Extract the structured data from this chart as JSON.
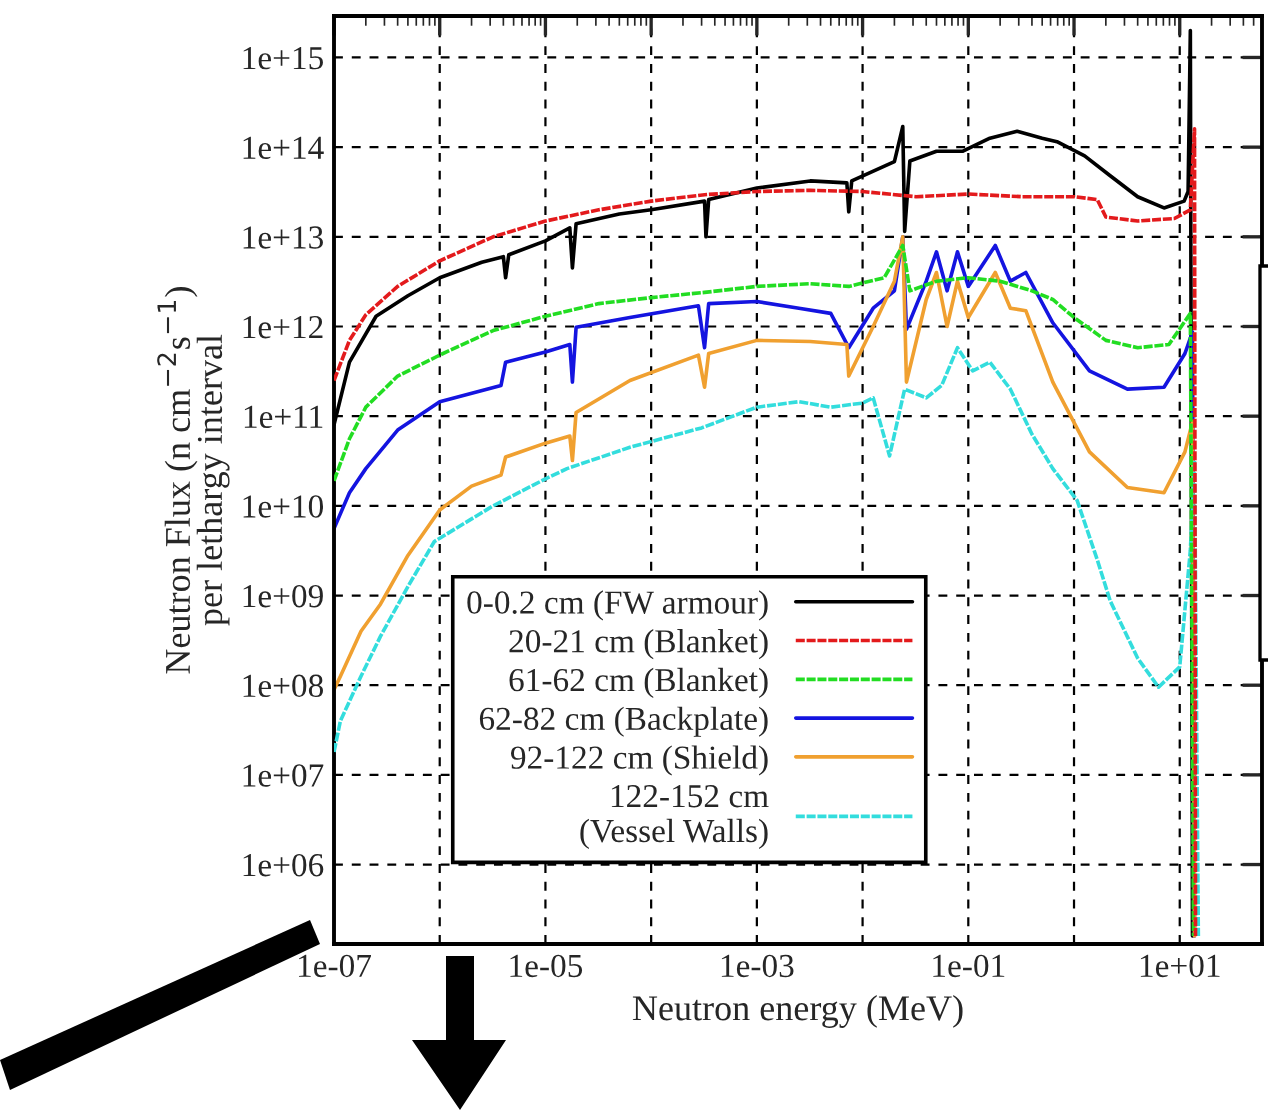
{
  "chart_data": {
    "type": "line",
    "xlabel": "Neutron energy (MeV)",
    "ylabel": "Neutron Flux (n cm$^{−2}$s$^{−1}$)\nper lethargy interval",
    "log": "xy",
    "grid": true,
    "legend": "bottom",
    "marker": "none",
    "xlim": [
      1e-07,
      60
    ],
    "ylim": [
      130000.0,
      2900000000000000.0
    ],
    "xticks": [
      {
        "value": 1e-07,
        "label": "1e-07"
      },
      {
        "value": 1e-06,
        "label": null
      },
      {
        "value": 1e-05,
        "label": "1e-05"
      },
      {
        "value": 0.0001,
        "label": null
      },
      {
        "value": 0.001,
        "label": "1e-03"
      },
      {
        "value": 0.01,
        "label": null
      },
      {
        "value": 0.1,
        "label": "1e-01"
      },
      {
        "value": 1,
        "label": null
      },
      {
        "value": 10,
        "label": "1e+01"
      }
    ],
    "yticks": [
      {
        "value": 1000000.0,
        "label": "1e+06"
      },
      {
        "value": 10000000.0,
        "label": "1e+07"
      },
      {
        "value": 100000000.0,
        "label": "1e+08"
      },
      {
        "value": 1000000000.0,
        "label": "1e+09"
      },
      {
        "value": 10000000000.0,
        "label": "1e+10"
      },
      {
        "value": 100000000000.0,
        "label": "1e+11"
      },
      {
        "value": 1000000000000.0,
        "label": "1e+12"
      },
      {
        "value": 10000000000000.0,
        "label": "1e+13"
      },
      {
        "value": 100000000000000.0,
        "label": "1e+14"
      },
      {
        "value": 1000000000000000.0,
        "label": "1e+15"
      }
    ],
    "series": [
      {
        "name": "0-0.2 cm (FW armour)",
        "color": "#000000",
        "line_style": "solid",
        "x": [
          1e-07,
          1.4e-07,
          2.5e-07,
          5e-07,
          1e-06,
          2.5e-06,
          4e-06,
          4.2e-06,
          4.5e-06,
          1e-05,
          1.7e-05,
          1.8e-05,
          1.95e-05,
          5e-05,
          0.0001,
          0.00032,
          0.00033,
          0.00035,
          0.001,
          0.0032,
          0.0071,
          0.0074,
          0.0079,
          0.02,
          0.024,
          0.025,
          0.028,
          0.05,
          0.089,
          0.16,
          0.29,
          0.5,
          0.69,
          1.26,
          2.2,
          4,
          7.1,
          11,
          12,
          12.6,
          13.2
        ],
        "values": [
          80000000000.0,
          400000000000.0,
          1300000000000.0,
          2200000000000.0,
          3500000000000.0,
          5200000000000.0,
          6000000000000.0,
          3500000000000.0,
          6300000000000.0,
          9000000000000.0,
          12600000000000.0,
          4500000000000.0,
          14000000000000.0,
          18000000000000.0,
          20000000000000.0,
          25000000000000.0,
          10000000000000.0,
          26000000000000.0,
          35000000000000.0,
          42000000000000.0,
          40000000000000.0,
          19000000000000.0,
          42000000000000.0,
          69000000000000.0,
          170000000000000.0,
          11500000000000.0,
          70000000000000.0,
          90000000000000.0,
          90000000000000.0,
          126000000000000.0,
          150000000000000.0,
          126000000000000.0,
          115000000000000.0,
          80000000000000.0,
          48000000000000.0,
          28000000000000.0,
          21000000000000.0,
          25000000000000.0,
          32000000000000.0,
          2000000000000000.0,
          160000.0
        ]
      },
      {
        "name": "20-21 cm (Blanket)",
        "color": "#e31a1c",
        "line_style": "dashed",
        "x": [
          1e-07,
          1.4e-07,
          2e-07,
          4e-07,
          1e-06,
          3.2e-06,
          1e-05,
          3.2e-05,
          0.0001,
          0.00032,
          0.001,
          0.0032,
          0.01,
          0.032,
          0.1,
          0.32,
          1,
          1.66,
          2,
          4,
          8.9,
          12.6,
          13.8,
          14.1
        ],
        "values": [
          250000000000.0,
          700000000000.0,
          1350000000000.0,
          2800000000000.0,
          5400000000000.0,
          10000000000000.0,
          15000000000000.0,
          20000000000000.0,
          25000000000000.0,
          29500000000000.0,
          32000000000000.0,
          33000000000000.0,
          32000000000000.0,
          28000000000000.0,
          30000000000000.0,
          28000000000000.0,
          28000000000000.0,
          26000000000000.0,
          16600000000000.0,
          15000000000000.0,
          16000000000000.0,
          20000000000000.0,
          160000000000000.0,
          160000.0
        ]
      },
      {
        "name": "61-62 cm (Blanket)",
        "color": "#22dd22",
        "line_style": "dashed",
        "x": [
          1e-07,
          1.4e-07,
          2e-07,
          4e-07,
          1e-06,
          3.2e-06,
          1e-05,
          3.2e-05,
          0.0001,
          0.00032,
          0.001,
          0.0032,
          0.0074,
          0.016,
          0.024,
          0.028,
          0.05,
          0.1,
          0.2,
          0.4,
          0.63,
          1,
          2,
          4,
          7.9,
          12.6,
          13.5
        ],
        "values": [
          19000000000.0,
          56000000000.0,
          126000000000.0,
          280000000000.0,
          480000000000.0,
          900000000000.0,
          1300000000000.0,
          1800000000000.0,
          2100000000000.0,
          2400000000000.0,
          2800000000000.0,
          3000000000000.0,
          2800000000000.0,
          3500000000000.0,
          8000000000000.0,
          2500000000000.0,
          3200000000000.0,
          3500000000000.0,
          3200000000000.0,
          2500000000000.0,
          2000000000000.0,
          1260000000000.0,
          700000000000.0,
          580000000000.0,
          630000000000.0,
          1400000000000.0,
          160000.0
        ]
      },
      {
        "name": "62-82 cm (Backplate)",
        "color": "#1414e0",
        "line_style": "solid",
        "x": [
          1e-07,
          1.4e-07,
          2e-07,
          4e-07,
          1e-06,
          3.8e-06,
          4.2e-06,
          1e-05,
          1.7e-05,
          1.8e-05,
          1.95e-05,
          6.3e-05,
          0.00028,
          0.00032,
          0.00035,
          0.001,
          0.0025,
          0.005,
          0.0074,
          0.0126,
          0.02,
          0.024,
          0.026,
          0.04,
          0.05,
          0.063,
          0.079,
          0.1,
          0.18,
          0.25,
          0.35,
          0.63,
          1.4,
          3.2,
          7.1,
          11.2,
          13.2,
          13.8
        ],
        "values": [
          5600000000.0,
          14000000000.0,
          26000000000.0,
          70000000000.0,
          145000000000.0,
          220000000000.0,
          400000000000.0,
          520000000000.0,
          630000000000.0,
          240000000000.0,
          980000000000.0,
          1260000000000.0,
          1700000000000.0,
          580000000000.0,
          1800000000000.0,
          1900000000000.0,
          1600000000000.0,
          1400000000000.0,
          580000000000.0,
          1600000000000.0,
          2500000000000.0,
          10000000000000.0,
          930000000000.0,
          3200000000000.0,
          6800000000000.0,
          2500000000000.0,
          6800000000000.0,
          2800000000000.0,
          8000000000000.0,
          3200000000000.0,
          4000000000000.0,
          1100000000000.0,
          320000000000.0,
          200000000000.0,
          210000000000.0,
          500000000000.0,
          870000000000.0,
          160000.0
        ]
      },
      {
        "name": "92-122 cm (Shield)",
        "color": "#f0a030",
        "line_style": "solid",
        "x": [
          1e-07,
          1.15e-07,
          1.8e-07,
          2.75e-07,
          5e-07,
          1e-06,
          2e-06,
          3.8e-06,
          4.2e-06,
          1e-05,
          1.7e-05,
          1.8e-05,
          1.95e-05,
          6.3e-05,
          0.00028,
          0.00032,
          0.00035,
          0.001,
          0.0032,
          0.0071,
          0.0074,
          0.0126,
          0.02,
          0.024,
          0.026,
          0.04,
          0.05,
          0.063,
          0.079,
          0.1,
          0.18,
          0.25,
          0.35,
          0.63,
          1.4,
          3.2,
          7.1,
          11.2,
          13.2,
          13.8
        ],
        "values": [
          89000000.0,
          126000000.0,
          400000000.0,
          800000000.0,
          2800000000.0,
          9000000000.0,
          16600000000.0,
          22000000000.0,
          35000000000.0,
          50000000000.0,
          60000000000.0,
          32000000000.0,
          110000000000.0,
          250000000000.0,
          480000000000.0,
          210000000000.0,
          500000000000.0,
          700000000000.0,
          680000000000.0,
          630000000000.0,
          280000000000.0,
          1000000000000.0,
          3200000000000.0,
          10000000000000.0,
          240000000000.0,
          2000000000000.0,
          4000000000000.0,
          1000000000000.0,
          3200000000000.0,
          1260000000000.0,
          4000000000000.0,
          1600000000000.0,
          1500000000000.0,
          240000000000.0,
          40000000000.0,
          16000000000.0,
          14000000000.0,
          40000000000.0,
          87000000000.0,
          160000.0
        ]
      },
      {
        "name": "122-152 cm\n(Vessel Walls)",
        "color": "#33dddd",
        "line_style": "dashed",
        "x": [
          1e-07,
          1.15e-07,
          1.8e-07,
          2.75e-07,
          5e-07,
          8.9e-07,
          3.2e-06,
          1e-05,
          1.6e-05,
          6.3e-05,
          0.0003,
          0.001,
          0.0025,
          0.005,
          0.01,
          0.0126,
          0.018,
          0.025,
          0.04,
          0.056,
          0.079,
          0.11,
          0.16,
          0.25,
          0.4,
          0.63,
          1.07,
          1.66,
          2.2,
          4,
          6.3,
          10,
          12.6,
          13.8,
          15
        ],
        "values": [
          18000000.0,
          40000000.0,
          126000000.0,
          350000000.0,
          1260000000.0,
          4000000000.0,
          10000000000.0,
          20000000000.0,
          26000000000.0,
          45000000000.0,
          74000000000.0,
          126000000000.0,
          145000000000.0,
          126000000000.0,
          140000000000.0,
          160000000000.0,
          36000000000.0,
          200000000000.0,
          160000000000.0,
          220000000000.0,
          580000000000.0,
          320000000000.0,
          400000000000.0,
          200000000000.0,
          63000000000.0,
          26000000000.0,
          11500000000.0,
          2500000000.0,
          870000000.0,
          200000000.0,
          95000000.0,
          160000000.0,
          3200000000.0,
          32000000000.0,
          160000.0
        ]
      }
    ]
  }
}
